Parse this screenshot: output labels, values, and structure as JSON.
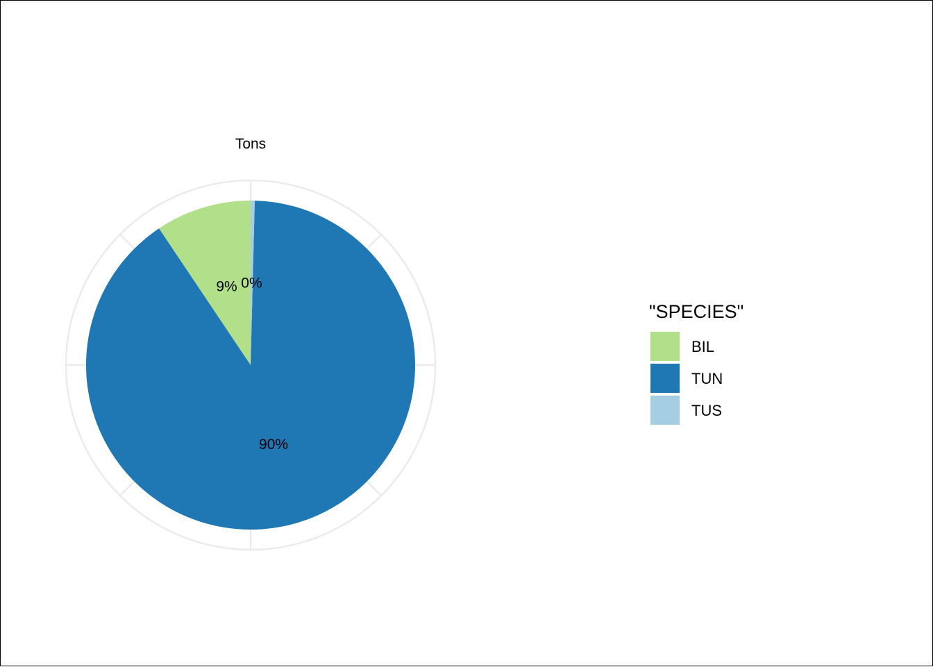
{
  "chart_data": {
    "type": "pie",
    "title": "Tons",
    "legend_title": "\"SPECIES\"",
    "legend_position": "right",
    "slices": [
      {
        "name": "BIL",
        "value": 9.4,
        "label": "9%",
        "color": "#b2df8a"
      },
      {
        "name": "TUN",
        "value": 90.2,
        "label": "90%",
        "color": "#1f78b4"
      },
      {
        "name": "TUS",
        "value": 0.4,
        "label": "0%",
        "color": "#a6cee3"
      }
    ],
    "grid": true
  }
}
